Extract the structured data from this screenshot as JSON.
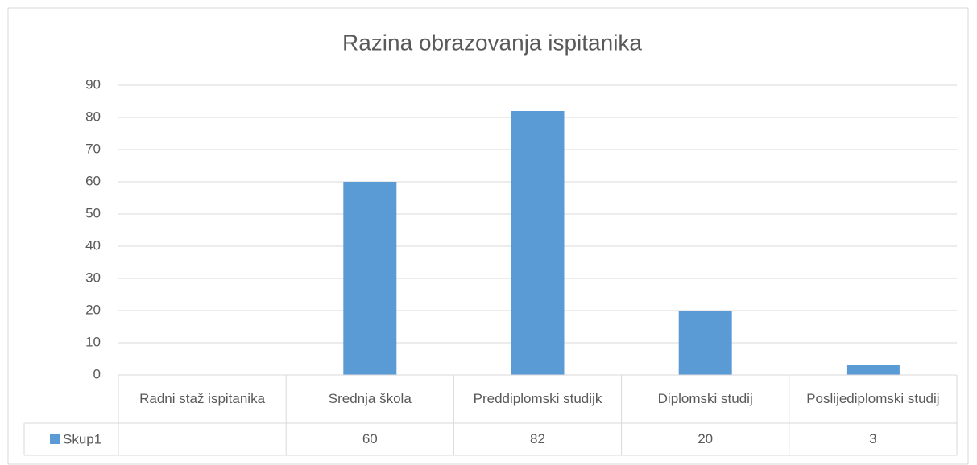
{
  "chart_data": {
    "type": "bar",
    "title": "Razina obrazovanja ispitanika",
    "categories": [
      "Radni staž ispitanika",
      "Srednja škola",
      "Preddiplomski studijk",
      "Diplomski studij",
      "Poslijediplomski studij"
    ],
    "series": [
      {
        "name": "Skup1",
        "color": "#5b9bd5",
        "values": [
          null,
          60,
          82,
          20,
          3
        ]
      }
    ],
    "ylim": [
      0,
      90
    ],
    "yticks": [
      0,
      10,
      20,
      30,
      40,
      50,
      60,
      70,
      80,
      90
    ],
    "grid": true,
    "data_table": true
  }
}
